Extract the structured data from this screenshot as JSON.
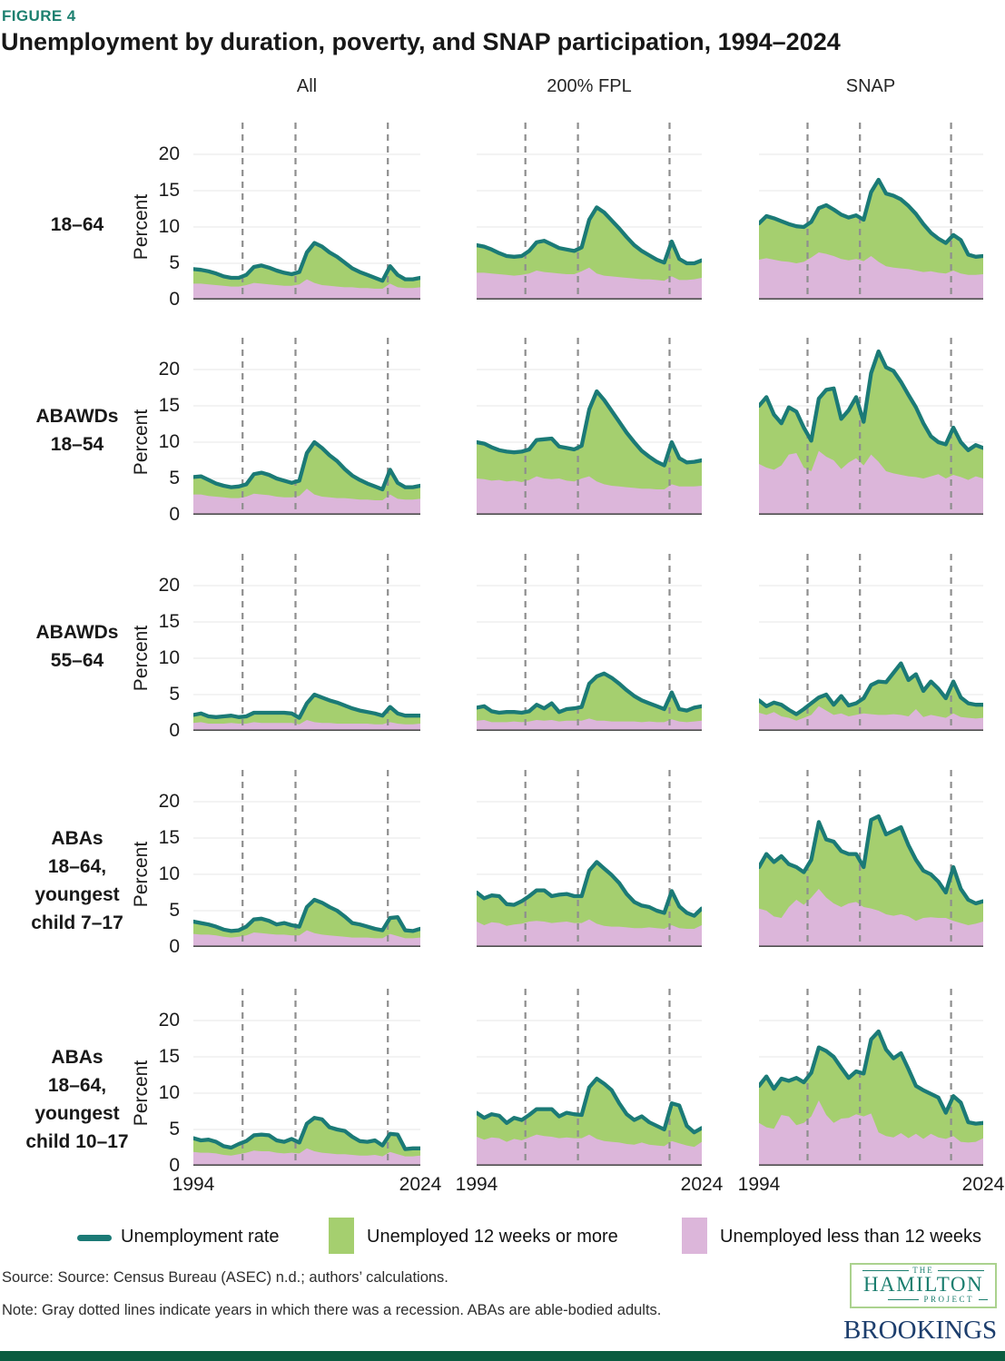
{
  "figure_label": "FIGURE 4",
  "title": "Unemployment by duration, poverty, and SNAP participation, 1994–2024",
  "columns": [
    "All",
    "200% FPL",
    "SNAP"
  ],
  "rows": [
    [
      "18–64"
    ],
    [
      "ABAWDs",
      "18–54"
    ],
    [
      "ABAWDs",
      "55–64"
    ],
    [
      "ABAs",
      "18–64,",
      "youngest",
      "child 7–17"
    ],
    [
      "ABAs",
      "18–64,",
      "youngest",
      "child 10–17"
    ]
  ],
  "axis": {
    "ylabel": "Percent",
    "yticks": [
      0,
      5,
      10,
      15,
      20
    ],
    "xticks": [
      "1994",
      "2024"
    ]
  },
  "legend": [
    {
      "type": "line",
      "label": "Unemployment rate",
      "color": "#1b7a76"
    },
    {
      "type": "box",
      "label": "Unemployed 12 weeks or more",
      "color": "#a5cf6f"
    },
    {
      "type": "box",
      "label": "Unemployed less than 12 weeks",
      "color": "#dcb6da"
    }
  ],
  "source": "Source: Source: Census Bureau (ASEC) n.d.; authors’ calculations.",
  "note": "Note: Gray dotted lines indicate years in which there was a recession. ABAs are able-bodied adults.",
  "logos": {
    "hamilton_the": "THE",
    "hamilton_name": "HAMILTON",
    "hamilton_project": "PROJECT",
    "brookings": "BROOKINGS"
  },
  "colors": {
    "teal_line": "#1b7a76",
    "green_fill": "#a5cf6f",
    "pink_fill": "#dcb6da",
    "recession_dash": "#8e8e8e",
    "grid": "#ececec",
    "axis": "#4f4f4f",
    "figure_label": "#1d8070",
    "hamilton": "#1b7e6f",
    "hamilton_border": "#abd28e",
    "brookings": "#1d3e6d",
    "footer_bar": "#0a5c40"
  },
  "chart_data": {
    "type": "area",
    "title": "Unemployment by duration, poverty, and SNAP participation, 1994–2024",
    "ylabel": "Percent",
    "x_range": [
      1994,
      2024
    ],
    "ylim": [
      0,
      24
    ],
    "grid": true,
    "recession_years": [
      2000.5,
      2007.5,
      2019.7
    ],
    "series_note": "total = unemployment rate (teal line, top of stacked areas); short = unemployed less than 12 weeks (pink, bottom layer); unemployed 12 weeks or more (green) = total minus short. One value per year 1994–2024.",
    "charts": [
      {
        "row": "18–64",
        "column": "All",
        "total": [
          4.2,
          4.1,
          3.9,
          3.6,
          3.2,
          3.0,
          3.0,
          3.4,
          4.5,
          4.7,
          4.4,
          4.0,
          3.7,
          3.5,
          3.8,
          6.5,
          7.8,
          7.3,
          6.5,
          5.9,
          5.1,
          4.3,
          3.8,
          3.4,
          3.0,
          2.6,
          4.6,
          3.4,
          2.8,
          2.8,
          3.0
        ],
        "short": [
          2.2,
          2.2,
          2.1,
          2.0,
          1.9,
          1.8,
          1.8,
          2.0,
          2.3,
          2.2,
          2.1,
          2.0,
          1.9,
          1.9,
          2.1,
          2.8,
          2.3,
          2.0,
          1.9,
          1.8,
          1.7,
          1.7,
          1.6,
          1.6,
          1.5,
          1.5,
          2.2,
          1.7,
          1.6,
          1.6,
          1.7
        ]
      },
      {
        "row": "18–64",
        "column": "200% FPL",
        "total": [
          7.5,
          7.3,
          6.9,
          6.4,
          6.0,
          5.9,
          6.0,
          6.7,
          7.9,
          8.1,
          7.6,
          7.1,
          6.9,
          6.7,
          7.2,
          11.0,
          12.7,
          12.0,
          10.9,
          9.8,
          8.6,
          7.5,
          6.7,
          6.1,
          5.5,
          5.1,
          8.0,
          5.6,
          5.0,
          5.0,
          5.4
        ],
        "short": [
          3.7,
          3.7,
          3.6,
          3.5,
          3.4,
          3.3,
          3.4,
          3.6,
          4.0,
          3.8,
          3.7,
          3.6,
          3.5,
          3.5,
          3.9,
          4.4,
          3.6,
          3.3,
          3.2,
          3.1,
          3.0,
          2.9,
          2.8,
          2.8,
          2.7,
          2.6,
          3.2,
          2.7,
          2.7,
          2.8,
          3.0
        ]
      },
      {
        "row": "18–64",
        "column": "SNAP",
        "total": [
          10.5,
          11.5,
          11.2,
          10.8,
          10.4,
          10.1,
          10.0,
          10.7,
          12.6,
          13.0,
          12.4,
          11.7,
          11.3,
          11.6,
          11.0,
          14.8,
          16.5,
          14.6,
          14.3,
          13.8,
          12.9,
          11.8,
          10.4,
          9.2,
          8.4,
          7.8,
          8.9,
          8.2,
          6.2,
          5.9,
          6.0
        ],
        "short": [
          5.5,
          5.7,
          5.5,
          5.3,
          5.2,
          5.0,
          5.2,
          5.8,
          6.5,
          6.3,
          6.0,
          5.6,
          5.4,
          5.6,
          5.3,
          6.0,
          5.2,
          4.6,
          4.4,
          4.3,
          4.2,
          4.0,
          3.8,
          3.9,
          3.7,
          3.6,
          4.0,
          3.6,
          3.4,
          3.4,
          3.5
        ]
      },
      {
        "row": "ABAWDs 18–54",
        "column": "All",
        "total": [
          5.2,
          5.3,
          4.8,
          4.3,
          4.0,
          3.8,
          3.9,
          4.2,
          5.6,
          5.8,
          5.5,
          5.0,
          4.7,
          4.4,
          4.7,
          8.5,
          10.0,
          9.2,
          8.2,
          7.4,
          6.3,
          5.4,
          4.8,
          4.3,
          3.9,
          3.5,
          6.2,
          4.4,
          3.8,
          3.8,
          4.0
        ],
        "short": [
          2.8,
          2.8,
          2.6,
          2.5,
          2.4,
          2.3,
          2.3,
          2.5,
          2.9,
          2.8,
          2.7,
          2.5,
          2.4,
          2.4,
          2.6,
          3.6,
          2.8,
          2.5,
          2.4,
          2.3,
          2.3,
          2.2,
          2.1,
          2.1,
          2.0,
          2.0,
          2.8,
          2.2,
          2.1,
          2.1,
          2.2
        ]
      },
      {
        "row": "ABAWDs 18–54",
        "column": "200% FPL",
        "total": [
          10.0,
          9.8,
          9.3,
          8.9,
          8.7,
          8.6,
          8.7,
          9.0,
          10.3,
          10.4,
          10.5,
          9.4,
          9.2,
          9.0,
          9.5,
          14.5,
          17.0,
          15.8,
          14.3,
          12.8,
          11.3,
          10.0,
          8.8,
          8.0,
          7.3,
          6.8,
          10.0,
          7.8,
          7.2,
          7.3,
          7.5
        ],
        "short": [
          5.0,
          4.9,
          4.7,
          4.8,
          4.6,
          4.7,
          4.5,
          4.8,
          5.3,
          5.0,
          4.9,
          5.0,
          4.7,
          4.6,
          5.0,
          5.3,
          4.6,
          4.2,
          4.0,
          3.9,
          3.8,
          3.7,
          3.6,
          3.6,
          3.5,
          3.5,
          4.2,
          3.9,
          3.9,
          3.9,
          4.0
        ]
      },
      {
        "row": "ABAWDs 18–54",
        "column": "SNAP",
        "total": [
          15.0,
          16.2,
          13.8,
          12.6,
          14.8,
          14.2,
          12.0,
          10.2,
          16.0,
          17.2,
          17.4,
          13.2,
          14.4,
          16.2,
          12.8,
          19.5,
          22.5,
          20.3,
          19.8,
          18.3,
          16.5,
          14.8,
          12.6,
          10.8,
          10.0,
          9.7,
          12.0,
          10.0,
          8.9,
          9.6,
          9.2
        ],
        "short": [
          7.0,
          6.5,
          6.2,
          6.8,
          8.3,
          8.5,
          6.5,
          6.0,
          8.8,
          8.0,
          7.5,
          6.3,
          7.2,
          7.8,
          6.8,
          8.3,
          7.3,
          6.0,
          5.7,
          5.5,
          5.3,
          5.2,
          5.0,
          5.3,
          5.6,
          5.0,
          5.5,
          5.2,
          4.8,
          5.3,
          5.0
        ]
      },
      {
        "row": "ABAWDs 55–64",
        "column": "All",
        "total": [
          2.2,
          2.4,
          2.0,
          1.9,
          2.0,
          2.1,
          1.9,
          2.0,
          2.5,
          2.5,
          2.5,
          2.5,
          2.5,
          2.4,
          1.8,
          3.8,
          5.0,
          4.6,
          4.2,
          3.9,
          3.5,
          3.1,
          2.8,
          2.6,
          2.4,
          2.1,
          3.3,
          2.4,
          2.1,
          2.1,
          2.1
        ],
        "short": [
          1.1,
          1.2,
          1.0,
          1.0,
          1.0,
          1.1,
          1.0,
          1.0,
          1.2,
          1.1,
          1.1,
          1.1,
          1.1,
          1.1,
          0.9,
          1.5,
          1.2,
          1.1,
          1.1,
          1.0,
          1.0,
          1.0,
          1.0,
          1.0,
          0.9,
          0.9,
          1.2,
          1.0,
          0.9,
          0.9,
          1.0
        ]
      },
      {
        "row": "ABAWDs 55–64",
        "column": "200% FPL",
        "total": [
          3.2,
          3.4,
          2.7,
          2.5,
          2.6,
          2.6,
          2.5,
          2.7,
          3.6,
          3.1,
          3.8,
          2.6,
          3.0,
          3.1,
          3.3,
          6.5,
          7.5,
          7.9,
          7.3,
          6.5,
          5.6,
          4.8,
          4.2,
          3.8,
          3.4,
          3.0,
          5.3,
          3.0,
          2.8,
          3.2,
          3.4
        ],
        "short": [
          1.4,
          1.5,
          1.2,
          1.2,
          1.2,
          1.3,
          1.2,
          1.3,
          1.5,
          1.4,
          1.5,
          1.3,
          1.4,
          1.4,
          1.4,
          1.7,
          1.4,
          1.4,
          1.3,
          1.3,
          1.3,
          1.3,
          1.2,
          1.3,
          1.2,
          1.2,
          1.6,
          1.3,
          1.2,
          1.3,
          1.4
        ]
      },
      {
        "row": "ABAWDs 55–64",
        "column": "SNAP",
        "total": [
          4.2,
          3.4,
          3.9,
          3.6,
          2.9,
          2.3,
          3.0,
          3.8,
          4.6,
          5.0,
          3.6,
          4.8,
          3.5,
          3.8,
          4.5,
          6.3,
          6.8,
          6.7,
          8.0,
          9.3,
          7.0,
          7.8,
          5.5,
          6.8,
          5.8,
          4.5,
          6.8,
          4.6,
          3.8,
          3.6,
          3.6
        ],
        "short": [
          2.5,
          2.2,
          2.6,
          2.0,
          1.8,
          1.4,
          1.8,
          2.2,
          3.4,
          2.8,
          2.2,
          2.4,
          2.0,
          2.2,
          2.4,
          2.3,
          2.2,
          2.2,
          2.3,
          2.2,
          2.0,
          3.0,
          1.9,
          2.2,
          2.0,
          1.8,
          2.4,
          1.9,
          1.8,
          1.7,
          1.8
        ]
      },
      {
        "row": "ABAs 18–64, youngest child 7–17",
        "column": "All",
        "total": [
          3.5,
          3.3,
          3.1,
          2.8,
          2.4,
          2.2,
          2.3,
          2.8,
          3.8,
          3.9,
          3.6,
          3.1,
          3.3,
          3.0,
          2.8,
          5.5,
          6.5,
          6.1,
          5.5,
          5.0,
          4.2,
          3.3,
          3.1,
          2.8,
          2.5,
          2.3,
          4.0,
          4.1,
          2.3,
          2.2,
          2.5
        ],
        "short": [
          1.8,
          1.7,
          1.7,
          1.6,
          1.4,
          1.3,
          1.4,
          1.6,
          2.0,
          1.9,
          1.8,
          1.7,
          1.7,
          1.6,
          1.6,
          2.3,
          1.9,
          1.7,
          1.6,
          1.5,
          1.4,
          1.3,
          1.3,
          1.3,
          1.2,
          1.2,
          1.8,
          1.5,
          1.2,
          1.2,
          1.3
        ]
      },
      {
        "row": "ABAs 18–64, youngest child 7–17",
        "column": "200% FPL",
        "total": [
          7.5,
          6.7,
          7.1,
          7.0,
          5.9,
          5.8,
          6.3,
          7.0,
          7.8,
          7.8,
          7.0,
          7.2,
          7.3,
          7.0,
          7.0,
          10.5,
          11.7,
          10.8,
          9.9,
          8.8,
          7.3,
          6.2,
          5.7,
          5.5,
          5.0,
          4.7,
          7.7,
          5.6,
          4.7,
          4.3,
          5.3
        ],
        "short": [
          3.5,
          3.0,
          3.4,
          3.3,
          2.9,
          3.1,
          3.2,
          3.5,
          3.6,
          3.5,
          3.3,
          3.4,
          3.5,
          3.3,
          3.3,
          3.8,
          3.2,
          2.9,
          2.8,
          2.8,
          2.7,
          2.6,
          2.6,
          2.7,
          2.6,
          2.5,
          3.0,
          2.6,
          2.5,
          2.5,
          3.0
        ]
      },
      {
        "row": "ABAs 18–64, youngest child 7–17",
        "column": "SNAP",
        "total": [
          11.0,
          12.8,
          11.7,
          12.5,
          11.4,
          11.0,
          10.3,
          12.0,
          17.2,
          14.8,
          14.5,
          13.2,
          12.8,
          12.8,
          11.0,
          17.5,
          18.0,
          15.5,
          16.0,
          16.5,
          14.0,
          12.0,
          10.5,
          10.0,
          9.0,
          7.5,
          11.0,
          8.0,
          6.5,
          6.0,
          6.3
        ],
        "short": [
          5.3,
          5.0,
          4.2,
          4.0,
          5.5,
          6.5,
          5.8,
          6.8,
          8.0,
          6.8,
          6.0,
          5.5,
          6.0,
          6.2,
          5.5,
          5.3,
          5.0,
          4.5,
          4.3,
          4.5,
          4.2,
          3.6,
          4.0,
          4.1,
          4.0,
          4.0,
          3.6,
          3.3,
          3.0,
          3.2,
          3.5
        ]
      },
      {
        "row": "ABAs 18–64, youngest child 10–17",
        "column": "All",
        "total": [
          3.8,
          3.5,
          3.6,
          3.3,
          2.7,
          2.5,
          3.0,
          3.4,
          4.2,
          4.3,
          4.2,
          3.5,
          3.3,
          3.7,
          3.2,
          5.8,
          6.6,
          6.4,
          5.3,
          5.0,
          4.8,
          4.0,
          3.4,
          3.3,
          3.5,
          2.8,
          4.4,
          4.3,
          2.3,
          2.4,
          2.4
        ],
        "short": [
          1.9,
          1.8,
          1.8,
          1.7,
          1.5,
          1.4,
          1.6,
          1.8,
          2.1,
          2.0,
          2.0,
          1.8,
          1.7,
          1.8,
          1.7,
          2.4,
          2.0,
          1.8,
          1.7,
          1.6,
          1.6,
          1.5,
          1.4,
          1.4,
          1.5,
          1.3,
          1.9,
          1.6,
          1.3,
          1.3,
          1.4
        ]
      },
      {
        "row": "ABAs 18–64, youngest child 10–17",
        "column": "200% FPL",
        "total": [
          7.3,
          6.6,
          7.1,
          6.9,
          5.9,
          6.6,
          6.3,
          7.0,
          7.8,
          7.8,
          7.8,
          6.8,
          7.3,
          7.1,
          7.0,
          10.8,
          12.0,
          11.3,
          10.4,
          8.6,
          7.1,
          6.3,
          6.8,
          6.0,
          5.5,
          5.0,
          8.6,
          8.3,
          5.5,
          4.6,
          5.2
        ],
        "short": [
          4.0,
          3.6,
          3.9,
          3.8,
          3.3,
          3.7,
          3.5,
          3.9,
          4.3,
          4.1,
          4.0,
          3.8,
          3.9,
          3.8,
          3.8,
          4.3,
          3.7,
          3.4,
          3.3,
          3.2,
          3.0,
          2.9,
          3.2,
          2.9,
          2.8,
          2.7,
          3.4,
          3.1,
          2.8,
          2.6,
          3.3
        ]
      },
      {
        "row": "ABAs 18–64, youngest child 10–17",
        "column": "SNAP",
        "total": [
          11.0,
          12.3,
          10.6,
          12.0,
          11.7,
          12.1,
          11.5,
          12.8,
          16.3,
          15.8,
          15.0,
          13.5,
          12.1,
          13.0,
          12.7,
          17.4,
          18.5,
          16.0,
          14.8,
          15.5,
          13.3,
          11.0,
          10.4,
          9.9,
          9.4,
          7.3,
          9.6,
          8.7,
          6.0,
          5.8,
          5.9
        ],
        "short": [
          5.9,
          5.3,
          5.1,
          7.0,
          6.8,
          5.6,
          5.9,
          6.8,
          9.0,
          7.0,
          5.9,
          6.5,
          6.6,
          7.1,
          6.8,
          7.2,
          4.6,
          4.1,
          3.9,
          4.5,
          3.8,
          4.4,
          3.7,
          4.4,
          3.9,
          3.7,
          4.1,
          3.3,
          3.2,
          3.3,
          3.8
        ]
      }
    ]
  }
}
